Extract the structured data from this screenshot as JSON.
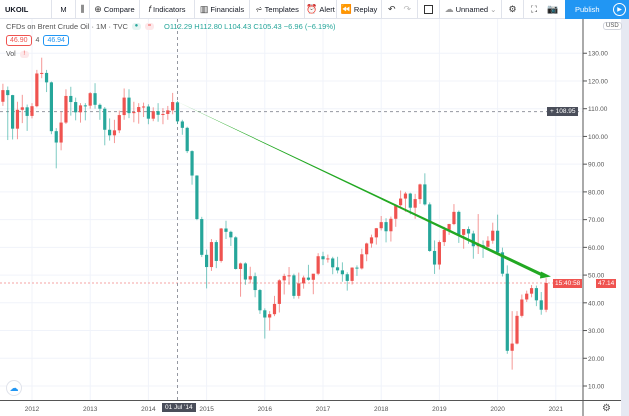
{
  "toolbar": {
    "symbol": "UKOIL",
    "interval": "M",
    "compare": "Compare",
    "indicators": "Indicators",
    "financials": "Financials",
    "templates": "Templates",
    "alert": "Alert",
    "replay": "Replay",
    "layout_name": "Unnamed",
    "publish": "Publish"
  },
  "legend": {
    "title": "CFDs on Brent Crude Oil · 1M · TVC",
    "ohlc": "O112.29 H112.80 L104.43 C105.43 −6.96 (−6.19%)",
    "bid": "46.90",
    "spread": "4",
    "ask": "46.94",
    "vol": "Vol"
  },
  "price_axis": {
    "currency": "USD",
    "crosshair_price": "108.95",
    "last_price": "47.14",
    "countdown": "15:40:58"
  },
  "time_axis": {
    "crosshair_date": "01 Jul '14"
  },
  "colors": {
    "up": "#ef5350",
    "down": "#26a69a",
    "trendline": "#22a822",
    "accent": "#2196f3"
  },
  "chart_data": {
    "type": "candlestick",
    "title": "CFDs on Brent Crude Oil · 1M · TVC",
    "ylim": [
      5,
      142
    ],
    "yticks": [
      10,
      20,
      30,
      40,
      50,
      60,
      70,
      80,
      90,
      100,
      110,
      120,
      130
    ],
    "ytick_labels": [
      "10.00",
      "20.00",
      "30.00",
      "40.00",
      "50.00",
      "60.00",
      "70.00",
      "80.00",
      "90.00",
      "100.00",
      "110.00",
      "120.00",
      "130.00"
    ],
    "xticks": [
      "2012",
      "2013",
      "2014",
      "2015",
      "2016",
      "2017",
      "2018",
      "2019",
      "2020",
      "2021"
    ],
    "grid": true,
    "candles_ohlc": [
      [
        "2011-07",
        112.5,
        119.0,
        111.0,
        116.7
      ],
      [
        "2011-08",
        116.7,
        118.0,
        98.7,
        114.9
      ],
      [
        "2011-09",
        114.9,
        115.0,
        98.9,
        102.8
      ],
      [
        "2011-10",
        102.8,
        112.5,
        99.0,
        109.6
      ],
      [
        "2011-11",
        109.6,
        115.0,
        104.8,
        110.5
      ],
      [
        "2011-12",
        110.5,
        111.5,
        102.0,
        107.4
      ],
      [
        "2012-01",
        107.4,
        112.0,
        106.5,
        110.9
      ],
      [
        "2012-02",
        110.9,
        124.0,
        110.5,
        122.7
      ],
      [
        "2012-03",
        122.7,
        128.4,
        121.0,
        122.9
      ],
      [
        "2012-04",
        122.9,
        124.0,
        116.0,
        119.5
      ],
      [
        "2012-05",
        119.5,
        119.8,
        100.8,
        101.9
      ],
      [
        "2012-06",
        101.9,
        103.0,
        88.5,
        97.8
      ],
      [
        "2012-07",
        97.8,
        109.0,
        95.0,
        105.0
      ],
      [
        "2012-08",
        105.0,
        117.0,
        104.5,
        114.6
      ],
      [
        "2012-09",
        114.6,
        117.9,
        107.5,
        112.4
      ],
      [
        "2012-10",
        112.4,
        114.0,
        105.8,
        108.7
      ],
      [
        "2012-11",
        108.7,
        112.0,
        105.0,
        111.2
      ],
      [
        "2012-12",
        111.2,
        112.0,
        105.8,
        111.1
      ],
      [
        "2013-01",
        111.1,
        116.0,
        110.0,
        115.6
      ],
      [
        "2013-02",
        115.6,
        119.2,
        110.0,
        111.4
      ],
      [
        "2013-03",
        111.4,
        111.9,
        106.0,
        110.0
      ],
      [
        "2013-04",
        110.0,
        110.6,
        96.8,
        102.4
      ],
      [
        "2013-05",
        102.4,
        106.5,
        98.5,
        100.4
      ],
      [
        "2013-06",
        100.4,
        106.0,
        97.6,
        102.2
      ],
      [
        "2013-07",
        102.2,
        109.3,
        101.2,
        107.7
      ],
      [
        "2013-08",
        107.7,
        117.3,
        106.0,
        114.0
      ],
      [
        "2013-09",
        114.0,
        117.0,
        106.6,
        108.4
      ],
      [
        "2013-10",
        108.4,
        112.5,
        105.1,
        108.8
      ],
      [
        "2013-11",
        108.8,
        112.0,
        104.6,
        110.6
      ],
      [
        "2013-12",
        110.6,
        112.2,
        107.0,
        110.8
      ],
      [
        "2014-01",
        110.8,
        111.6,
        104.4,
        106.4
      ],
      [
        "2014-02",
        106.4,
        110.5,
        105.5,
        109.1
      ],
      [
        "2014-03",
        109.1,
        112.0,
        105.3,
        107.8
      ],
      [
        "2014-04",
        107.8,
        110.2,
        104.4,
        108.1
      ],
      [
        "2014-05",
        108.1,
        111.0,
        106.0,
        109.4
      ],
      [
        "2014-06",
        109.4,
        115.7,
        108.0,
        112.4
      ],
      [
        "2014-07",
        112.29,
        112.8,
        104.43,
        105.43
      ],
      [
        "2014-08",
        105.4,
        106.0,
        100.6,
        103.1
      ],
      [
        "2014-09",
        103.1,
        103.5,
        94.0,
        94.7
      ],
      [
        "2014-10",
        94.7,
        95.0,
        82.6,
        85.9
      ],
      [
        "2014-11",
        85.9,
        86.0,
        69.8,
        70.2
      ],
      [
        "2014-12",
        70.2,
        71.0,
        56.5,
        57.3
      ],
      [
        "2015-01",
        57.3,
        59.2,
        45.2,
        52.9
      ],
      [
        "2015-02",
        52.9,
        63.0,
        51.5,
        61.9
      ],
      [
        "2015-03",
        61.9,
        62.6,
        52.5,
        55.1
      ],
      [
        "2015-04",
        55.1,
        67.0,
        54.5,
        66.8
      ],
      [
        "2015-05",
        66.8,
        69.6,
        63.0,
        65.6
      ],
      [
        "2015-06",
        65.6,
        66.0,
        60.5,
        63.6
      ],
      [
        "2015-07",
        63.6,
        64.0,
        52.0,
        52.2
      ],
      [
        "2015-08",
        52.2,
        54.5,
        42.2,
        54.2
      ],
      [
        "2015-09",
        54.2,
        54.6,
        46.5,
        48.4
      ],
      [
        "2015-10",
        48.4,
        53.0,
        47.0,
        49.6
      ],
      [
        "2015-11",
        49.6,
        50.9,
        42.0,
        44.6
      ],
      [
        "2015-12",
        44.6,
        45.0,
        36.0,
        37.3
      ],
      [
        "2016-01",
        37.3,
        38.0,
        27.1,
        34.7
      ],
      [
        "2016-02",
        34.7,
        37.0,
        30.0,
        35.9
      ],
      [
        "2016-03",
        35.9,
        42.5,
        35.2,
        39.6
      ],
      [
        "2016-04",
        39.6,
        48.5,
        36.5,
        48.1
      ],
      [
        "2016-05",
        48.1,
        50.5,
        43.0,
        49.7
      ],
      [
        "2016-06",
        49.7,
        52.9,
        46.5,
        49.9
      ],
      [
        "2016-07",
        49.9,
        50.5,
        41.5,
        42.5
      ],
      [
        "2016-08",
        42.5,
        50.9,
        41.5,
        47.0
      ],
      [
        "2016-09",
        47.0,
        49.8,
        45.1,
        49.1
      ],
      [
        "2016-10",
        49.1,
        53.7,
        48.0,
        48.3
      ],
      [
        "2016-11",
        48.3,
        50.3,
        43.1,
        50.5
      ],
      [
        "2016-12",
        50.5,
        57.9,
        50.0,
        56.8
      ],
      [
        "2017-01",
        56.8,
        58.4,
        53.6,
        55.7
      ],
      [
        "2017-02",
        55.7,
        57.4,
        54.5,
        56.0
      ],
      [
        "2017-03",
        56.0,
        56.6,
        50.3,
        52.8
      ],
      [
        "2017-04",
        52.8,
        56.6,
        50.6,
        51.7
      ],
      [
        "2017-05",
        51.7,
        54.6,
        47.6,
        50.3
      ],
      [
        "2017-06",
        50.3,
        51.0,
        44.4,
        47.9
      ],
      [
        "2017-07",
        47.9,
        52.8,
        46.6,
        52.7
      ],
      [
        "2017-08",
        52.7,
        53.5,
        49.7,
        52.4
      ],
      [
        "2017-09",
        52.4,
        59.5,
        52.0,
        57.5
      ],
      [
        "2017-10",
        57.5,
        61.7,
        55.0,
        61.4
      ],
      [
        "2017-11",
        61.4,
        64.6,
        59.9,
        63.6
      ],
      [
        "2017-12",
        63.6,
        67.0,
        61.0,
        66.9
      ],
      [
        "2018-01",
        66.9,
        71.3,
        66.1,
        69.1
      ],
      [
        "2018-02",
        69.1,
        70.5,
        61.8,
        65.8
      ],
      [
        "2018-03",
        65.8,
        71.1,
        62.1,
        70.3
      ],
      [
        "2018-04",
        70.3,
        75.5,
        67.4,
        75.2
      ],
      [
        "2018-05",
        75.2,
        80.5,
        74.1,
        77.6
      ],
      [
        "2018-06",
        77.6,
        80.0,
        72.8,
        79.4
      ],
      [
        "2018-07",
        79.4,
        79.7,
        71.9,
        74.3
      ],
      [
        "2018-08",
        74.3,
        79.3,
        70.3,
        77.4
      ],
      [
        "2018-09",
        77.4,
        83.0,
        75.7,
        82.7
      ],
      [
        "2018-10",
        82.7,
        86.7,
        75.1,
        75.5
      ],
      [
        "2018-11",
        75.5,
        76.2,
        58.4,
        58.7
      ],
      [
        "2018-12",
        58.7,
        62.5,
        50.4,
        53.8
      ],
      [
        "2019-01",
        53.8,
        62.5,
        52.0,
        61.9
      ],
      [
        "2019-02",
        61.9,
        67.4,
        60.5,
        66.3
      ],
      [
        "2019-03",
        66.3,
        68.5,
        64.5,
        68.4
      ],
      [
        "2019-04",
        68.4,
        75.6,
        68.0,
        72.8
      ],
      [
        "2019-05",
        72.8,
        73.3,
        61.6,
        64.5
      ],
      [
        "2019-06",
        64.5,
        66.0,
        59.5,
        66.6
      ],
      [
        "2019-07",
        66.6,
        67.5,
        61.3,
        65.0
      ],
      [
        "2019-08",
        65.0,
        66.0,
        55.9,
        60.4
      ],
      [
        "2019-09",
        60.4,
        72.0,
        57.6,
        60.8
      ],
      [
        "2019-10",
        60.8,
        62.5,
        56.2,
        60.2
      ],
      [
        "2019-11",
        60.2,
        64.0,
        59.5,
        62.4
      ],
      [
        "2019-12",
        62.4,
        68.9,
        61.3,
        66.0
      ],
      [
        "2020-01",
        66.0,
        71.8,
        58.0,
        58.2
      ],
      [
        "2020-02",
        58.2,
        59.9,
        49.5,
        50.5
      ],
      [
        "2020-03",
        50.5,
        53.5,
        21.6,
        22.7
      ],
      [
        "2020-04",
        22.7,
        37.0,
        15.9,
        25.3
      ],
      [
        "2020-05",
        25.3,
        37.0,
        25.0,
        35.3
      ],
      [
        "2020-06",
        35.3,
        43.0,
        34.7,
        41.2
      ],
      [
        "2020-07",
        41.2,
        44.4,
        40.3,
        43.3
      ],
      [
        "2020-08",
        43.3,
        46.4,
        42.0,
        45.3
      ],
      [
        "2020-09",
        45.3,
        46.2,
        38.8,
        40.9
      ],
      [
        "2020-10",
        40.9,
        43.9,
        35.7,
        37.5
      ],
      [
        "2020-11",
        37.5,
        48.9,
        36.6,
        47.14
      ]
    ],
    "trendline": {
      "from": [
        "2014-07",
        112.5
      ],
      "to": [
        "2020-12",
        49.5
      ]
    },
    "horizontal_lines": [
      108.95,
      47.14
    ]
  }
}
